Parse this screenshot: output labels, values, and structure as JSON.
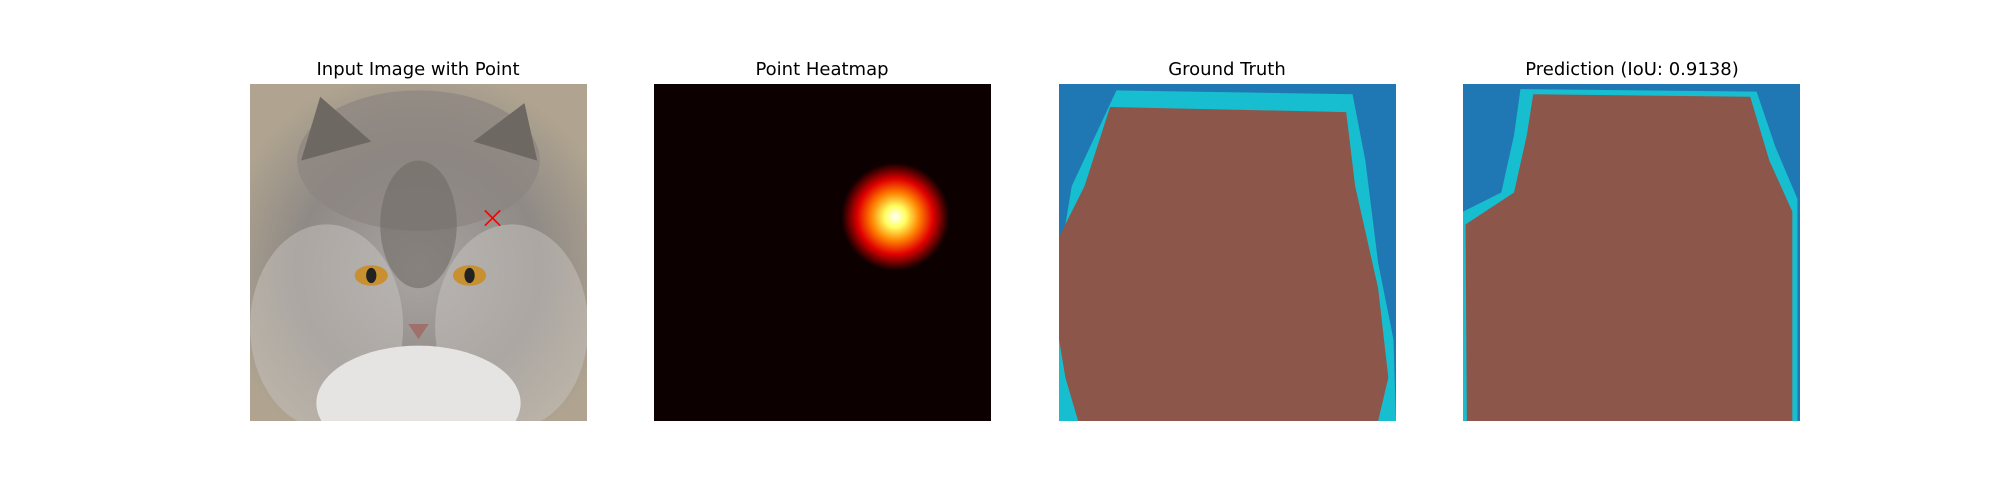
{
  "panels": [
    {
      "title": "Input Image with Point"
    },
    {
      "title": "Point Heatmap"
    },
    {
      "title": "Ground Truth"
    },
    {
      "title": "Prediction (IoU: 0.9138)"
    }
  ]
}
